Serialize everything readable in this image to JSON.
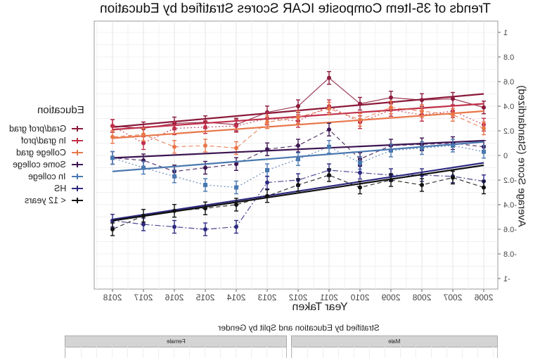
{
  "title": "Trends of 35-Item Composite ICAR Scores Stratified by Education",
  "legend": {
    "title": "Education",
    "items": [
      {
        "label": "Grad/prof grad",
        "color": "#8b1a3a"
      },
      {
        "label": "In grad/prof",
        "color": "#c0304a"
      },
      {
        "label": "College grad",
        "color": "#e8774a"
      },
      {
        "label": "Some college",
        "color": "#3d1552"
      },
      {
        "label": "In college",
        "color": "#4a78b0"
      },
      {
        "label": "HS",
        "color": "#2e2a80"
      },
      {
        "label": "< 12 years",
        "color": "#111111"
      }
    ]
  },
  "axes": {
    "xlabel": "Year Taken",
    "ylabel": "Average Score (Standardized)"
  },
  "subplot": {
    "title": "Stratified by Education and Split by Gender",
    "facets": [
      "Female",
      "Male"
    ],
    "y_top_tick": "1"
  },
  "chart_data": {
    "type": "line",
    "title": "Trends of 35-Item Composite ICAR Scores Stratified by Education",
    "xlabel": "Year Taken",
    "ylabel": "Average Score (Standardized)",
    "mirrored": true,
    "x": [
      2006,
      2007,
      2008,
      2009,
      2010,
      2011,
      2012,
      2013,
      2014,
      2015,
      2016,
      2017,
      2018
    ],
    "yticks": [
      -1,
      -0.8,
      -0.6,
      -0.4,
      -0.2,
      0,
      0.2,
      0.4,
      0.6,
      0.8,
      1
    ],
    "ylim": [
      -1.05,
      1.05
    ],
    "grid": true,
    "legend_position": "left",
    "series": [
      {
        "name": "Grad/prof grad",
        "color": "#8b1a3a",
        "dash": "",
        "values": [
          0.39,
          0.46,
          0.45,
          0.47,
          0.42,
          0.63,
          0.4,
          0.35,
          0.25,
          0.27,
          0.26,
          0.22,
          0.24
        ],
        "trend": [
          0.5,
          0.23
        ]
      },
      {
        "name": "In grad/prof",
        "color": "#c0304a",
        "dash": "2,3",
        "values": [
          0.25,
          0.36,
          0.33,
          0.37,
          0.27,
          0.4,
          0.28,
          0.3,
          0.24,
          0.23,
          0.22,
          0.1,
          0.24
        ],
        "trend": [
          0.42,
          0.21
        ]
      },
      {
        "name": "College grad",
        "color": "#e8774a",
        "dash": "6,4",
        "values": [
          0.22,
          0.33,
          0.36,
          0.39,
          0.29,
          0.38,
          0.31,
          0.27,
          0.06,
          0.08,
          0.07,
          0.17,
          0.15
        ],
        "trend": [
          0.36,
          0.14
        ]
      },
      {
        "name": "Some college",
        "color": "#3d1552",
        "dash": "6,4",
        "values": [
          0.07,
          0.1,
          0.09,
          0.08,
          -0.03,
          0.21,
          0.08,
          0.05,
          -0.07,
          -0.1,
          -0.13,
          -0.04,
          -0.02
        ],
        "trend": [
          0.12,
          -0.02
        ]
      },
      {
        "name": "In college",
        "color": "#4a78b0",
        "dash": "2,3",
        "values": [
          0.03,
          0.08,
          0.06,
          0.04,
          -0.06,
          0.07,
          -0.03,
          -0.12,
          -0.26,
          -0.24,
          -0.17,
          -0.1,
          -0.02
        ],
        "trend": [
          0.11,
          -0.13
        ]
      },
      {
        "name": "HS",
        "color": "#2e2a80",
        "dash": "8,3,2,3",
        "values": [
          -0.21,
          -0.17,
          -0.16,
          -0.16,
          -0.14,
          -0.12,
          -0.2,
          -0.22,
          -0.58,
          -0.6,
          -0.58,
          -0.56,
          -0.53
        ],
        "trend": [
          -0.06,
          -0.52
        ]
      },
      {
        "name": "< 12 years",
        "color": "#111111",
        "dash": "6,4",
        "values": [
          -0.26,
          -0.18,
          -0.24,
          -0.2,
          -0.26,
          -0.16,
          -0.24,
          -0.33,
          -0.4,
          -0.43,
          -0.45,
          -0.49,
          -0.6
        ],
        "trend": [
          -0.08,
          -0.53
        ]
      }
    ]
  }
}
